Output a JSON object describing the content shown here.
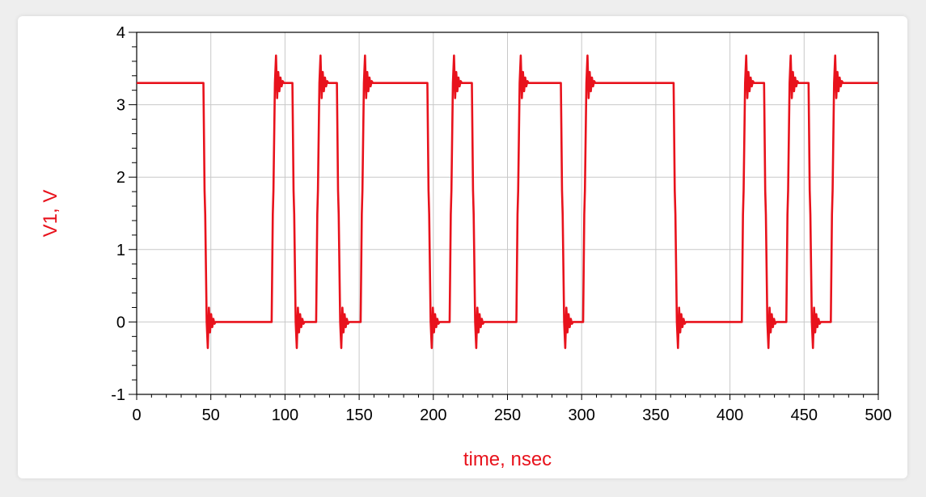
{
  "chart_data": {
    "type": "line",
    "xlabel": "time, nsec",
    "ylabel": "V1, V",
    "xlim": [
      0,
      500
    ],
    "ylim": [
      -1,
      4
    ],
    "x_ticks": [
      "0",
      "50",
      "100",
      "150",
      "200",
      "250",
      "300",
      "350",
      "400",
      "450",
      "500"
    ],
    "y_ticks": [
      "-1",
      "0",
      "1",
      "2",
      "3",
      "4"
    ],
    "grid": true,
    "colors": {
      "series": "#e8121c",
      "axis_title": "#e8121c",
      "grid": "#c8c8c8",
      "frame": "#000000"
    },
    "series": [
      {
        "high_level": 3.3,
        "low_level": 0,
        "transitions": [
          {
            "t": 45,
            "to": 0
          },
          {
            "t": 91,
            "to": 3.3
          },
          {
            "t": 105,
            "to": 0
          },
          {
            "t": 121,
            "to": 3.3
          },
          {
            "t": 135,
            "to": 0
          },
          {
            "t": 151,
            "to": 3.3
          },
          {
            "t": 196,
            "to": 0
          },
          {
            "t": 211,
            "to": 3.3
          },
          {
            "t": 226,
            "to": 0
          },
          {
            "t": 256,
            "to": 3.3
          },
          {
            "t": 286,
            "to": 0
          },
          {
            "t": 301,
            "to": 3.3
          },
          {
            "t": 362,
            "to": 0
          },
          {
            "t": 408,
            "to": 3.3
          },
          {
            "t": 423,
            "to": 0
          },
          {
            "t": 438,
            "to": 3.3
          },
          {
            "t": 453,
            "to": 0
          },
          {
            "t": 468,
            "to": 3.3
          }
        ],
        "overshoot_peak": 3.68,
        "undershoot_peak": -0.36
      }
    ]
  }
}
